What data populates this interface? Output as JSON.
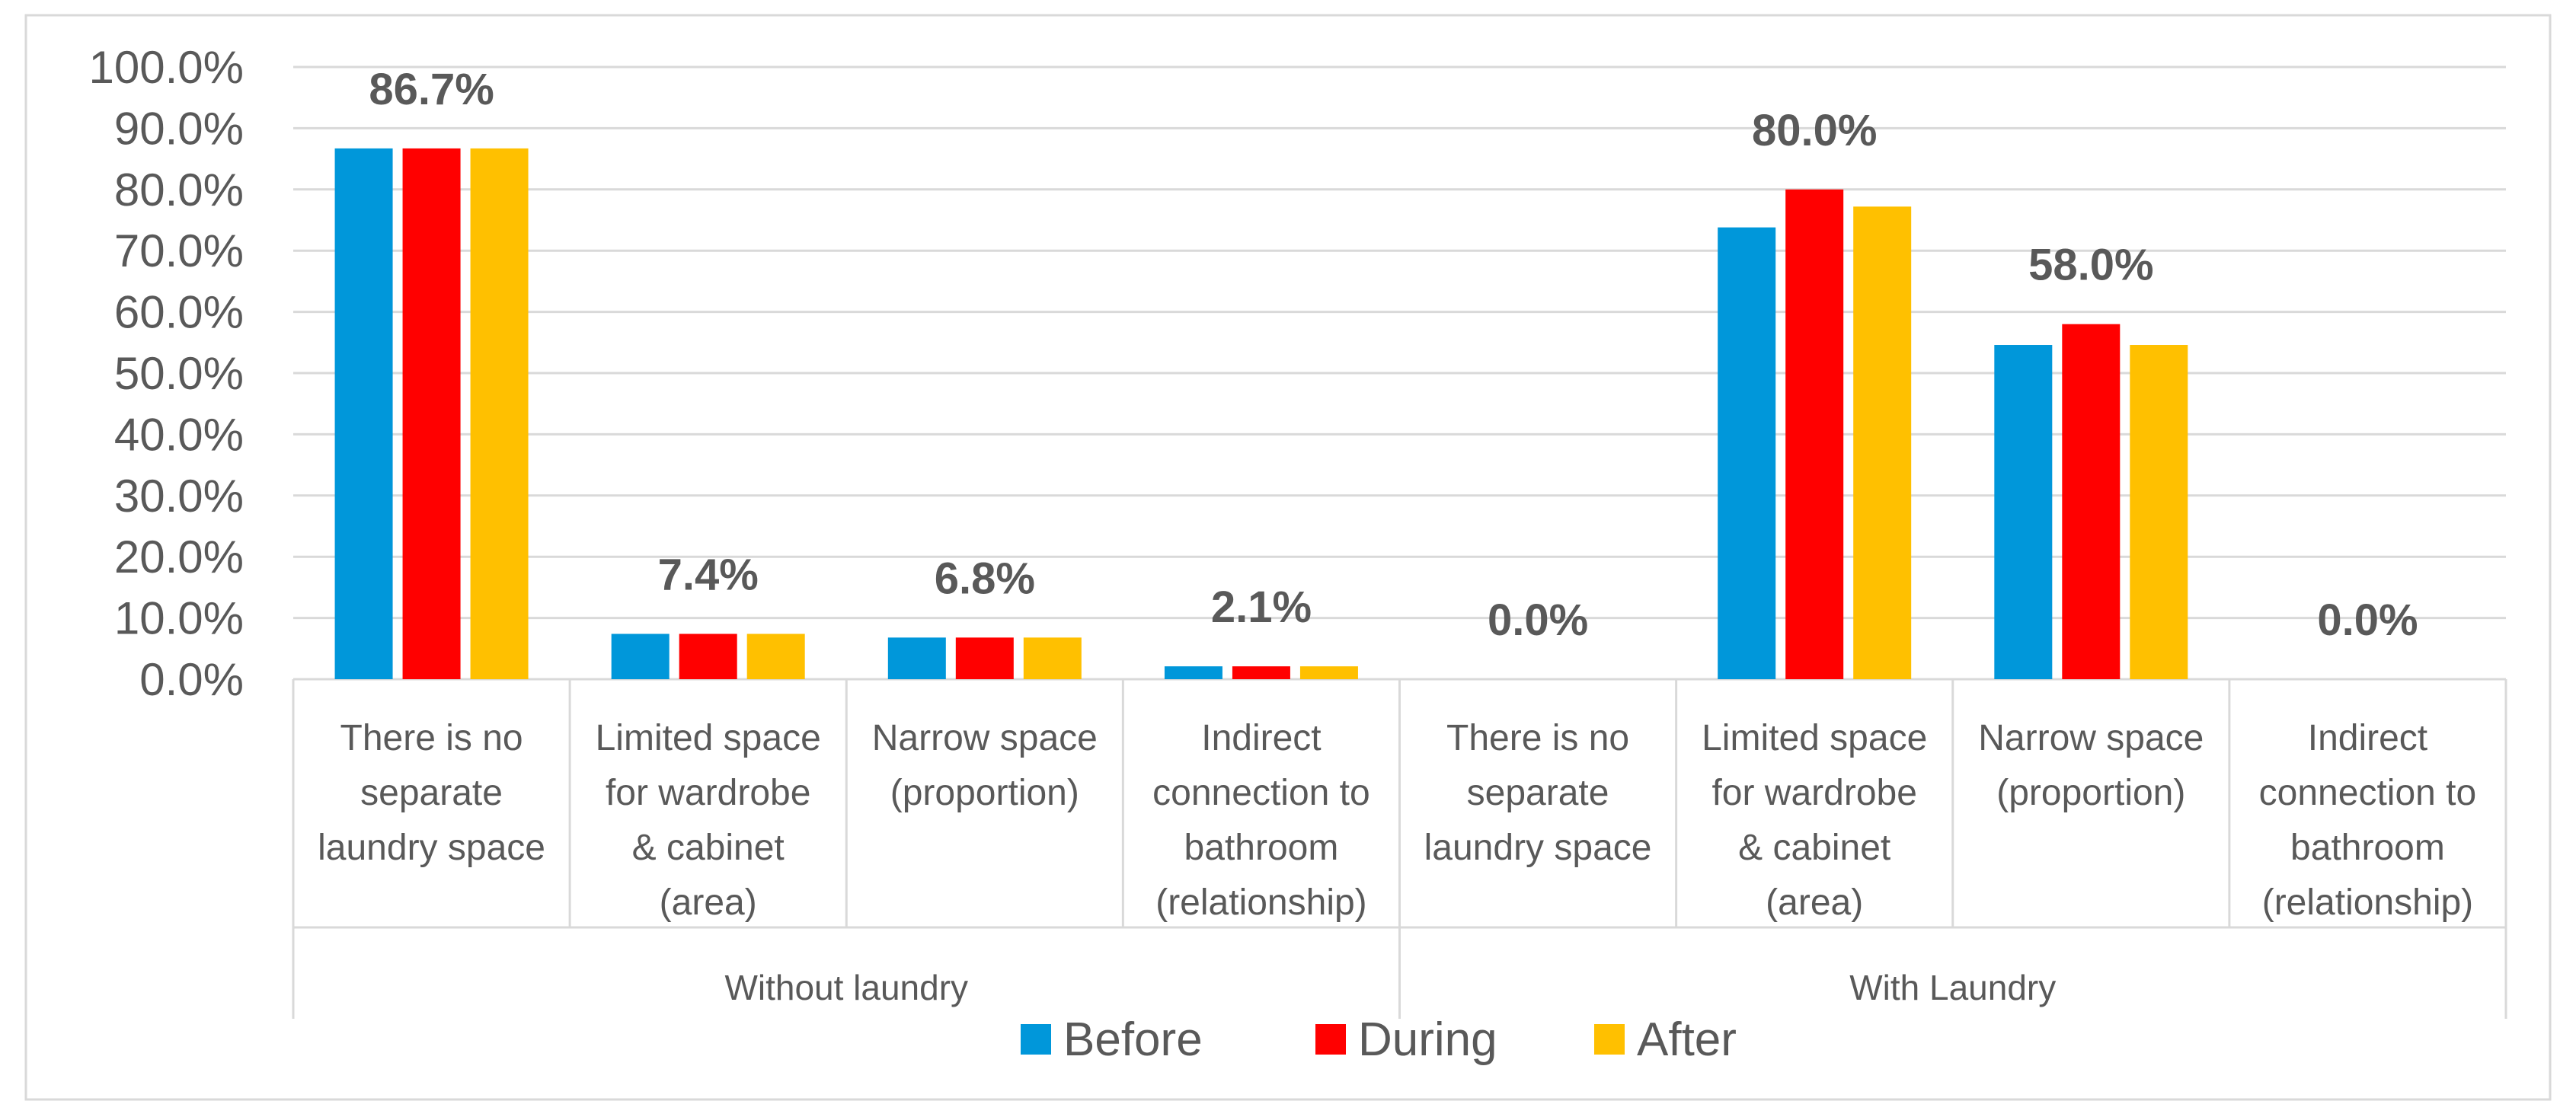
{
  "chart_data": {
    "type": "bar",
    "groups": [
      {
        "name": "Without laundry",
        "categories": [
          [
            "There is no",
            "separate",
            "laundry space"
          ],
          [
            "Limited space",
            "for wardrobe",
            "& cabinet",
            "(area)"
          ],
          [
            "Narrow space",
            "(proportion)"
          ],
          [
            "Indirect",
            "connection to",
            "bathroom",
            "(relationship)"
          ]
        ]
      },
      {
        "name": "With Laundry",
        "categories": [
          [
            "There is no",
            "separate",
            "laundry space"
          ],
          [
            "Limited space",
            "for wardrobe",
            "& cabinet",
            "(area)"
          ],
          [
            "Narrow space",
            "(proportion)"
          ],
          [
            "Indirect",
            "connection to",
            "bathroom",
            "(relationship)"
          ]
        ]
      }
    ],
    "series": [
      {
        "name": "Before",
        "color": "#0097DA",
        "values": [
          86.7,
          7.4,
          6.8,
          2.1,
          0.0,
          73.8,
          54.6,
          0.0
        ]
      },
      {
        "name": "During",
        "color": "#FF0000",
        "values": [
          86.7,
          7.4,
          6.8,
          2.1,
          0.0,
          80.0,
          58.0,
          0.0
        ]
      },
      {
        "name": "After",
        "color": "#FFC000",
        "values": [
          86.7,
          7.4,
          6.8,
          2.1,
          0.0,
          77.2,
          54.6,
          0.0
        ]
      }
    ],
    "data_labels": [
      "86.7%",
      "7.4%",
      "6.8%",
      "2.1%",
      "0.0%",
      "80.0%",
      "58.0%",
      "0.0%"
    ],
    "ylim": [
      0,
      100
    ],
    "ytick_step": 10,
    "ytick_format": "percent-1dp",
    "grid": true,
    "legend_position": "bottom"
  }
}
